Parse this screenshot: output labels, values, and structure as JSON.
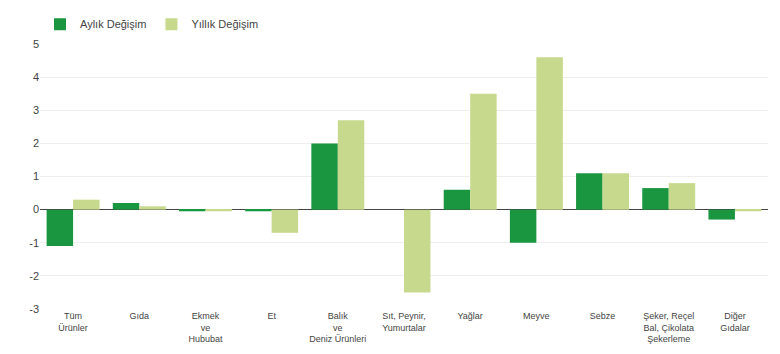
{
  "chart_data": {
    "type": "bar",
    "categories": [
      "Tüm\nÜrünler",
      "Gıda",
      "Ekmek\nve\nHububat",
      "Et",
      "Balık\nve\nDeniz Ürünleri",
      "Sıt, Peynir,\nYumurtalar",
      "Yağlar",
      "Meyve",
      "Sebze",
      "Şeker, Reçel\nBal, Çikolata\nŞekerleme",
      "Diğer\nGıdalar"
    ],
    "series": [
      {
        "name": "Aylık Değişim",
        "color": "#1a9641",
        "values": [
          -1.1,
          0.2,
          -0.05,
          -0.05,
          2.0,
          0.0,
          0.6,
          -1.0,
          1.1,
          0.65,
          -0.3
        ]
      },
      {
        "name": "Yıllık Değişim",
        "color": "#c7d98c",
        "values": [
          0.3,
          0.1,
          -0.05,
          -0.7,
          2.7,
          -2.5,
          3.5,
          4.6,
          1.1,
          0.8,
          -0.05
        ]
      }
    ],
    "ylim": [
      -3,
      5
    ],
    "yticks": [
      -3,
      -2,
      -1,
      0,
      1,
      2,
      3,
      4,
      5
    ],
    "grid": true,
    "legend": "upper left"
  }
}
